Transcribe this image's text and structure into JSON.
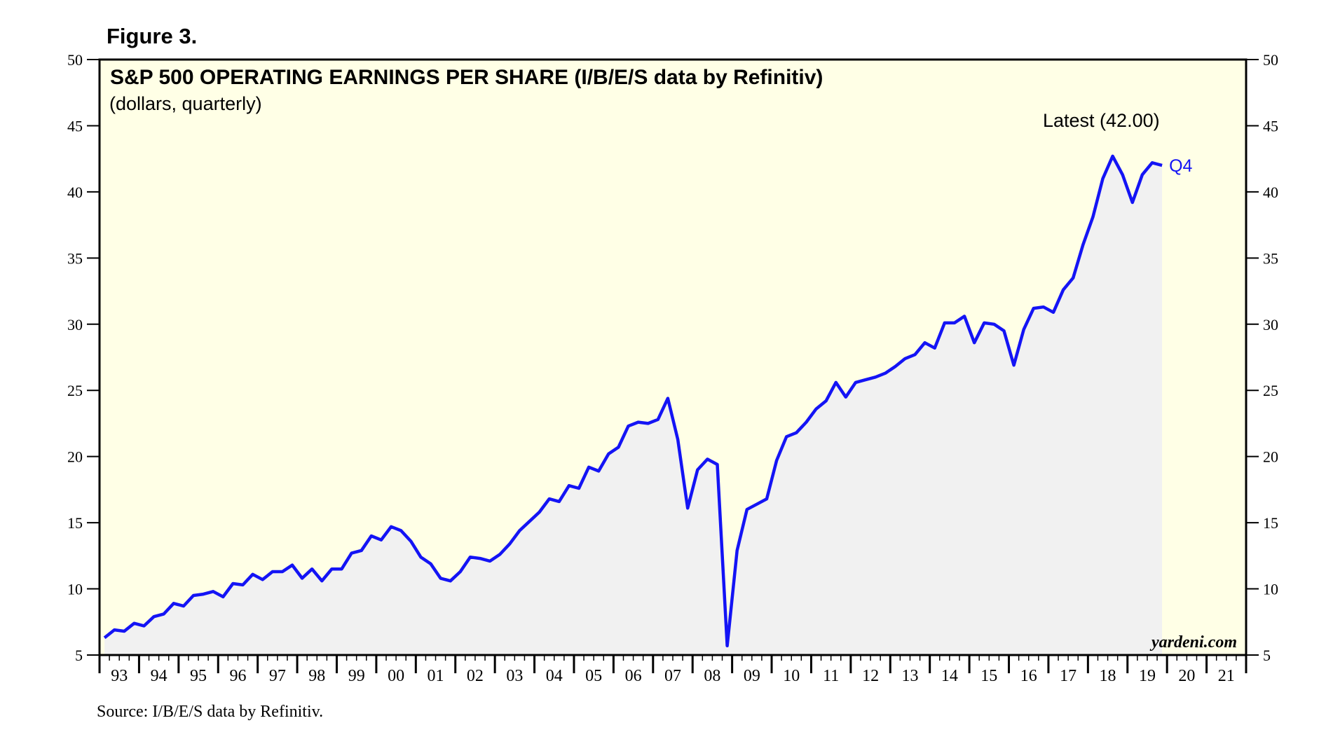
{
  "figure_label": "Figure 3.",
  "source": "Source: I/B/E/S data by Refinitiv.",
  "colors": {
    "plot_background": "#ffffe6",
    "area_fill": "#f1f1f1",
    "line": "#1414f5",
    "frame": "#000000"
  },
  "chart_data": {
    "type": "area",
    "title": "S&P 500 OPERATING EARNINGS PER SHARE (I/B/E/S data by Refinitiv)",
    "subtitle": "(dollars, quarterly)",
    "ylabel": "dollars",
    "ylim": [
      5,
      50
    ],
    "yticks": [
      5,
      10,
      15,
      20,
      25,
      30,
      35,
      40,
      45,
      50
    ],
    "ytick_labels": [
      "5",
      "10",
      "15",
      "20",
      "25",
      "30",
      "35",
      "40",
      "45",
      "50"
    ],
    "xlim": [
      1993.0,
      2022.0
    ],
    "year_labels": [
      "93",
      "94",
      "95",
      "96",
      "97",
      "98",
      "99",
      "00",
      "01",
      "02",
      "03",
      "04",
      "05",
      "06",
      "07",
      "08",
      "09",
      "10",
      "11",
      "12",
      "13",
      "14",
      "15",
      "16",
      "17",
      "18",
      "19",
      "20",
      "21"
    ],
    "latest_label": "Latest (42.00)",
    "last_point_label": "Q4",
    "brand": "yardeni.com",
    "grid": false,
    "series": [
      {
        "name": "S&P 500 Operating EPS",
        "x": [
          1993.125,
          1993.375,
          1993.625,
          1993.875,
          1994.125,
          1994.375,
          1994.625,
          1994.875,
          1995.125,
          1995.375,
          1995.625,
          1995.875,
          1996.125,
          1996.375,
          1996.625,
          1996.875,
          1997.125,
          1997.375,
          1997.625,
          1997.875,
          1998.125,
          1998.375,
          1998.625,
          1998.875,
          1999.125,
          1999.375,
          1999.625,
          1999.875,
          2000.125,
          2000.375,
          2000.625,
          2000.875,
          2001.125,
          2001.375,
          2001.625,
          2001.875,
          2002.125,
          2002.375,
          2002.625,
          2002.875,
          2003.125,
          2003.375,
          2003.625,
          2003.875,
          2004.125,
          2004.375,
          2004.625,
          2004.875,
          2005.125,
          2005.375,
          2005.625,
          2005.875,
          2006.125,
          2006.375,
          2006.625,
          2006.875,
          2007.125,
          2007.375,
          2007.625,
          2007.875,
          2008.125,
          2008.375,
          2008.625,
          2008.875,
          2009.125,
          2009.375,
          2009.625,
          2009.875,
          2010.125,
          2010.375,
          2010.625,
          2010.875,
          2011.125,
          2011.375,
          2011.625,
          2011.875,
          2012.125,
          2012.375,
          2012.625,
          2012.875,
          2013.125,
          2013.375,
          2013.625,
          2013.875,
          2014.125,
          2014.375,
          2014.625,
          2014.875,
          2015.125,
          2015.375,
          2015.625,
          2015.875,
          2016.125,
          2016.375,
          2016.625,
          2016.875,
          2017.125,
          2017.375,
          2017.625,
          2017.875,
          2018.125,
          2018.375,
          2018.625,
          2018.875,
          2019.125,
          2019.375,
          2019.625,
          2019.875
        ],
        "values": [
          6.3,
          6.9,
          6.8,
          7.4,
          7.2,
          7.9,
          8.1,
          8.9,
          8.7,
          9.5,
          9.6,
          9.8,
          9.4,
          10.4,
          10.3,
          11.1,
          10.7,
          11.3,
          11.3,
          11.8,
          10.8,
          11.5,
          10.6,
          11.5,
          11.5,
          12.7,
          12.9,
          14.0,
          13.7,
          14.7,
          14.4,
          13.6,
          12.4,
          11.9,
          10.8,
          10.6,
          11.3,
          12.4,
          12.3,
          12.1,
          12.6,
          13.4,
          14.4,
          15.1,
          15.8,
          16.8,
          16.6,
          17.8,
          17.6,
          19.2,
          18.9,
          20.2,
          20.7,
          22.3,
          22.6,
          22.5,
          22.8,
          24.4,
          21.3,
          16.1,
          19.0,
          19.8,
          19.4,
          5.7,
          12.9,
          16.0,
          16.4,
          16.8,
          19.7,
          21.5,
          21.8,
          22.6,
          23.6,
          24.2,
          25.6,
          24.5,
          25.6,
          25.8,
          26.0,
          26.3,
          26.8,
          27.4,
          27.7,
          28.6,
          28.2,
          30.1,
          30.1,
          30.6,
          28.6,
          30.1,
          30.0,
          29.5,
          26.9,
          29.6,
          31.2,
          31.3,
          30.9,
          32.6,
          33.5,
          36.0,
          38.1,
          41.0,
          42.7,
          41.3,
          39.2,
          41.3,
          42.2,
          42.0
        ]
      }
    ]
  }
}
